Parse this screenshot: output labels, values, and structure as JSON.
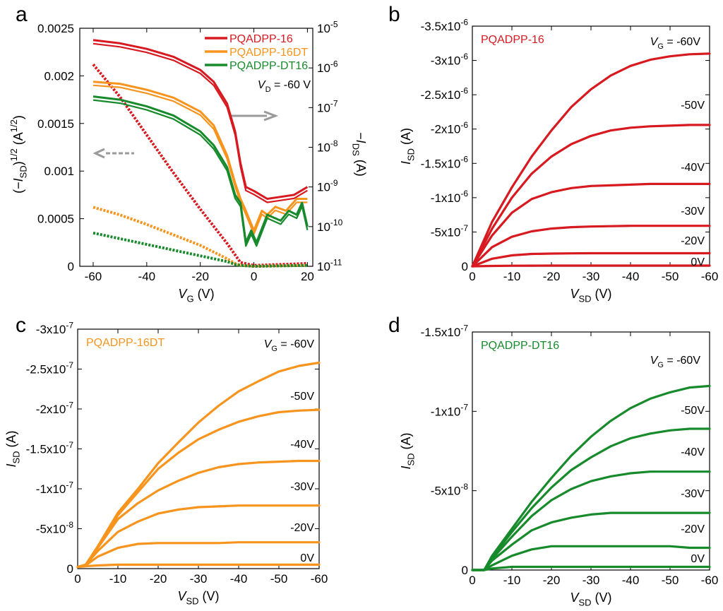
{
  "figure": {
    "colors": {
      "red": "#d71920",
      "orange": "#f7941d",
      "green": "#178a2b",
      "gray": "#9a9a9a"
    }
  },
  "chart_data": [
    {
      "panel": "a",
      "type": "line",
      "xlabel": {
        "italic": "V",
        "sub": "G",
        "unit": " (V)"
      },
      "ylabel_left": {
        "pre": "(−",
        "italic": "I",
        "sub": "SD",
        "post": ")",
        "sup": "1/2",
        "unit": " (A",
        "unitsup": "1/2",
        "close": ")"
      },
      "ylabel_right": {
        "pre": "−",
        "italic": "I",
        "sub": "DS",
        "unit": " (A)"
      },
      "xlim": [
        -65,
        22
      ],
      "ylim": [
        0,
        0.0025
      ],
      "xticks": [
        "-60",
        "-40",
        "-20",
        "0",
        "20"
      ],
      "yticks_left": [
        "0",
        "0.0005",
        "0.001",
        "0.0015",
        "0.002",
        "0.0025"
      ],
      "yticks_right": [
        {
          "base": "10",
          "exp": "-11"
        },
        {
          "base": "10",
          "exp": "-10"
        },
        {
          "base": "10",
          "exp": "-9"
        },
        {
          "base": "10",
          "exp": "-8"
        },
        {
          "base": "10",
          "exp": "-7"
        },
        {
          "base": "10",
          "exp": "-6"
        },
        {
          "base": "10",
          "exp": "-5"
        }
      ],
      "annotation": {
        "italic": "V",
        "sub": "D",
        "text": " = -60 V"
      },
      "legend": [
        "PQADPP-16",
        "PQADPP-16DT",
        "PQADPP-DT16"
      ],
      "series": [
        {
          "name": "PQADPP-16",
          "color": "red",
          "transfer_log_I": [
            [
              -60,
              -5.3
            ],
            [
              -50,
              -5.38
            ],
            [
              -40,
              -5.52
            ],
            [
              -30,
              -5.72
            ],
            [
              -20,
              -6.05
            ],
            [
              -15,
              -6.35
            ],
            [
              -10,
              -6.9
            ],
            [
              -7,
              -7.6
            ],
            [
              -5,
              -8.4
            ],
            [
              -3,
              -9.0
            ],
            [
              0,
              -9.1
            ],
            [
              5,
              -9.3
            ],
            [
              10,
              -9.25
            ],
            [
              15,
              -9.2
            ],
            [
              20,
              -9.0
            ]
          ],
          "sqrt_I": [
            [
              -60,
              0.00212
            ],
            [
              -50,
              0.00178
            ],
            [
              -40,
              0.00138
            ],
            [
              -30,
              0.00098
            ],
            [
              -20,
              0.0006
            ],
            [
              -15,
              0.00042
            ],
            [
              -10,
              0.00024
            ],
            [
              -7,
              0.00012
            ],
            [
              -5,
              4e-05
            ],
            [
              0,
              1e-05
            ],
            [
              20,
              3e-05
            ]
          ]
        },
        {
          "name": "PQADPP-16DT",
          "color": "orange",
          "transfer_log_I": [
            [
              -60,
              -6.35
            ],
            [
              -50,
              -6.4
            ],
            [
              -40,
              -6.55
            ],
            [
              -30,
              -6.75
            ],
            [
              -20,
              -7.1
            ],
            [
              -15,
              -7.45
            ],
            [
              -10,
              -8.2
            ],
            [
              -7,
              -8.9
            ],
            [
              -5,
              -9.3
            ],
            [
              -3,
              -9.6
            ],
            [
              0,
              -10.1
            ],
            [
              3,
              -9.6
            ],
            [
              5,
              -9.7
            ],
            [
              8,
              -9.5
            ],
            [
              12,
              -9.6
            ],
            [
              16,
              -9.3
            ],
            [
              20,
              -9.3
            ]
          ],
          "sqrt_I": [
            [
              -60,
              0.00062
            ],
            [
              -50,
              0.00054
            ],
            [
              -40,
              0.00044
            ],
            [
              -30,
              0.00033
            ],
            [
              -20,
              0.00022
            ],
            [
              -15,
              0.00015
            ],
            [
              -10,
              8e-05
            ],
            [
              -7,
              3e-05
            ],
            [
              -5,
              1e-05
            ],
            [
              0,
              0.0
            ],
            [
              20,
              1e-05
            ]
          ]
        },
        {
          "name": "PQADPP-DT16",
          "color": "green",
          "transfer_log_I": [
            [
              -60,
              -6.72
            ],
            [
              -50,
              -6.8
            ],
            [
              -40,
              -6.97
            ],
            [
              -30,
              -7.2
            ],
            [
              -20,
              -7.6
            ],
            [
              -15,
              -7.95
            ],
            [
              -10,
              -8.5
            ],
            [
              -7,
              -9.2
            ],
            [
              -5,
              -9.4
            ],
            [
              -4,
              -9.9
            ],
            [
              -3,
              -10.4
            ],
            [
              -1,
              -10.1
            ],
            [
              1,
              -10.4
            ],
            [
              5,
              -9.7
            ],
            [
              10,
              -9.85
            ],
            [
              13,
              -9.6
            ],
            [
              16,
              -9.7
            ],
            [
              18,
              -9.4
            ],
            [
              20,
              -10.0
            ]
          ],
          "sqrt_I": [
            [
              -60,
              0.00035
            ],
            [
              -50,
              0.00029
            ],
            [
              -40,
              0.00023
            ],
            [
              -30,
              0.00017
            ],
            [
              -20,
              0.00011
            ],
            [
              -15,
              8e-05
            ],
            [
              -10,
              5e-05
            ],
            [
              -7,
              2e-05
            ],
            [
              -5,
              1e-05
            ],
            [
              0,
              0.0
            ],
            [
              20,
              1e-05
            ]
          ]
        }
      ],
      "arrows": [
        {
          "direction": "right",
          "style": "solid"
        },
        {
          "direction": "left",
          "style": "dashed"
        }
      ]
    },
    {
      "panel": "b",
      "type": "line",
      "label": "PQADPP-16",
      "color": "red",
      "xlabel": {
        "italic": "V",
        "sub": "SD",
        "unit": " (V)"
      },
      "ylabel": {
        "italic": "I",
        "sub": "SD",
        "unit": " (A)"
      },
      "xlim": [
        0,
        -60
      ],
      "ylim": [
        0,
        -3.5e-06
      ],
      "xticks": [
        "0",
        "-10",
        "-20",
        "-30",
        "-40",
        "-50",
        "-60"
      ],
      "yticks": [
        {
          "base": "0",
          "exp": ""
        },
        {
          "base": "-5x10",
          "exp": "-7"
        },
        {
          "base": "-1x10",
          "exp": "-6"
        },
        {
          "base": "-1.5x10",
          "exp": "-6"
        },
        {
          "base": "-2x10",
          "exp": "-6"
        },
        {
          "base": "-2.5x10",
          "exp": "-6"
        },
        {
          "base": "-3x10",
          "exp": "-6"
        },
        {
          "base": "-3.5x10",
          "exp": "-6"
        }
      ],
      "vg_labels": [
        {
          "italic": "V",
          "sub": "G",
          "text": " = -60V"
        },
        {
          "text": "-50V"
        },
        {
          "text": "-40V"
        },
        {
          "text": "-30V"
        },
        {
          "text": "-20V"
        },
        {
          "text": "0V"
        }
      ],
      "x": [
        0,
        -5,
        -10,
        -15,
        -20,
        -25,
        -30,
        -35,
        -40,
        -45,
        -50,
        -55,
        -60
      ],
      "series": [
        {
          "name": "-60V",
          "values": [
            0,
            -6.5e-07,
            -1.15e-06,
            -1.6e-06,
            -1.98e-06,
            -2.32e-06,
            -2.58e-06,
            -2.78e-06,
            -2.92e-06,
            -3.01e-06,
            -3.06e-06,
            -3.09e-06,
            -3.1e-06
          ]
        },
        {
          "name": "-50V",
          "values": [
            0,
            -5.5e-07,
            -1e-06,
            -1.35e-06,
            -1.6e-06,
            -1.78e-06,
            -1.9e-06,
            -1.98e-06,
            -2.02e-06,
            -2.04e-06,
            -2.05e-06,
            -2.06e-06,
            -2.06e-06
          ]
        },
        {
          "name": "-40V",
          "values": [
            0,
            -4.5e-07,
            -7.8e-07,
            -9.8e-07,
            -1.08e-06,
            -1.14e-06,
            -1.17e-06,
            -1.18e-06,
            -1.19e-06,
            -1.2e-06,
            -1.2e-06,
            -1.2e-06,
            -1.2e-06
          ]
        },
        {
          "name": "-30V",
          "values": [
            0,
            -2.8e-07,
            -4.3e-07,
            -5.1e-07,
            -5.5e-07,
            -5.7e-07,
            -5.8e-07,
            -5.85e-07,
            -5.9e-07,
            -5.9e-07,
            -5.9e-07,
            -5.9e-07,
            -5.9e-07
          ]
        },
        {
          "name": "-20V",
          "values": [
            0,
            -1.1e-07,
            -1.6e-07,
            -1.8e-07,
            -1.85e-07,
            -1.88e-07,
            -1.9e-07,
            -1.9e-07,
            -1.9e-07,
            -1.9e-07,
            -1.9e-07,
            -1.9e-07,
            -1.9e-07
          ]
        },
        {
          "name": "0V",
          "values": [
            0,
            -5e-09,
            -8e-09,
            -9e-09,
            -1e-08,
            -1e-08,
            -1e-08,
            -1e-08,
            -1e-08,
            -1e-08,
            -1e-08,
            -1e-08,
            -1e-08
          ]
        }
      ]
    },
    {
      "panel": "c",
      "type": "line",
      "label": "PQADPP-16DT",
      "color": "orange",
      "xlabel": {
        "italic": "V",
        "sub": "SD",
        "unit": " (V)"
      },
      "ylabel": {
        "italic": "I",
        "sub": "SD",
        "unit": " (A)"
      },
      "xlim": [
        0,
        -60
      ],
      "ylim": [
        0,
        -3e-07
      ],
      "xticks": [
        "0",
        "-10",
        "-20",
        "-30",
        "-40",
        "-50",
        "-60"
      ],
      "yticks": [
        {
          "base": "0",
          "exp": ""
        },
        {
          "base": "-5x10",
          "exp": "-8"
        },
        {
          "base": "-1x10",
          "exp": "-7"
        },
        {
          "base": "-1.5x10",
          "exp": "-7"
        },
        {
          "base": "-2x10",
          "exp": "-7"
        },
        {
          "base": "-2.5x10",
          "exp": "-7"
        },
        {
          "base": "-3x10",
          "exp": "-7"
        }
      ],
      "vg_labels": [
        {
          "italic": "V",
          "sub": "G",
          "text": " = -60V"
        },
        {
          "text": "-50V"
        },
        {
          "text": "-40V"
        },
        {
          "text": "-30V"
        },
        {
          "text": "-20V"
        },
        {
          "text": "0V"
        }
      ],
      "x": [
        0,
        -2,
        -5,
        -10,
        -15,
        -20,
        -25,
        -30,
        -35,
        -40,
        -45,
        -50,
        -55,
        -60
      ],
      "series": [
        {
          "name": "-60V",
          "values": [
            -2e-09,
            -5e-09,
            -2.8e-08,
            -7e-08,
            -1e-07,
            -1.32e-07,
            -1.58e-07,
            -1.83e-07,
            -2.04e-07,
            -2.22e-07,
            -2.35e-07,
            -2.47e-07,
            -2.54e-07,
            -2.58e-07
          ]
        },
        {
          "name": "-50V",
          "values": [
            -2e-09,
            -5e-09,
            -2.7e-08,
            -6.7e-08,
            -9.6e-08,
            -1.25e-07,
            -1.45e-07,
            -1.62e-07,
            -1.74e-07,
            -1.84e-07,
            -1.91e-07,
            -1.96e-07,
            -1.98e-07,
            -1.99e-07
          ]
        },
        {
          "name": "-40V",
          "values": [
            -2e-09,
            -5e-09,
            -2.6e-08,
            -6.2e-08,
            -8.2e-08,
            -9.8e-08,
            -1.1e-07,
            -1.2e-07,
            -1.27e-07,
            -1.31e-07,
            -1.33e-07,
            -1.34e-07,
            -1.35e-07,
            -1.35e-07
          ]
        },
        {
          "name": "-30V",
          "values": [
            -2e-09,
            -5e-09,
            -2.2e-08,
            -4.6e-08,
            -5.9e-08,
            -6.9e-08,
            -7.4e-08,
            -7.7e-08,
            -7.8e-08,
            -7.9e-08,
            -7.9e-08,
            -7.9e-08,
            -7.9e-08,
            -7.9e-08
          ]
        },
        {
          "name": "-20V",
          "values": [
            -2e-09,
            -4e-09,
            -1.5e-08,
            -2.6e-08,
            -3.1e-08,
            -3.2e-08,
            -3.2e-08,
            -3.2e-08,
            -3.2e-08,
            -3.3e-08,
            -3.3e-08,
            -3.3e-08,
            -3.3e-08,
            -3.3e-08
          ]
        },
        {
          "name": "0V",
          "values": [
            -2e-09,
            -3e-09,
            -4e-09,
            -5e-09,
            -5e-09,
            -5e-09,
            -5e-09,
            -5e-09,
            -5e-09,
            -5e-09,
            -5e-09,
            -5e-09,
            -5e-09,
            -5e-09
          ]
        }
      ]
    },
    {
      "panel": "d",
      "type": "line",
      "label": "PQADPP-DT16",
      "color": "green",
      "xlabel": {
        "italic": "V",
        "sub": "SD",
        "unit": " (V)"
      },
      "ylabel": {
        "italic": "I",
        "sub": "SD",
        "unit": " (A)"
      },
      "xlim": [
        0,
        -60
      ],
      "ylim": [
        0,
        -1.5e-07
      ],
      "xticks": [
        "0",
        "-10",
        "-20",
        "-30",
        "-40",
        "-50",
        "-60"
      ],
      "yticks": [
        {
          "base": "0",
          "exp": ""
        },
        {
          "base": "-5x10",
          "exp": "-8"
        },
        {
          "base": "-1x10",
          "exp": "-7"
        },
        {
          "base": "-1.5x10",
          "exp": "-7"
        }
      ],
      "vg_labels": [
        {
          "italic": "V",
          "sub": "G",
          "text": " = -60V"
        },
        {
          "text": "-50V"
        },
        {
          "text": "-40V"
        },
        {
          "text": "-30V"
        },
        {
          "text": "-20V"
        },
        {
          "text": "0V"
        }
      ],
      "x": [
        0,
        -3,
        -5,
        -10,
        -15,
        -20,
        -25,
        -30,
        -35,
        -40,
        -45,
        -50,
        -55,
        -60
      ],
      "series": [
        {
          "name": "-60V",
          "values": [
            0,
            0,
            -9e-09,
            -2.6e-08,
            -4.3e-08,
            -5.8e-08,
            -7.2e-08,
            -8.4e-08,
            -9.4e-08,
            -1.02e-07,
            -1.08e-07,
            -1.12e-07,
            -1.15e-07,
            -1.16e-07
          ]
        },
        {
          "name": "-50V",
          "values": [
            0,
            0,
            -8e-09,
            -2.4e-08,
            -3.9e-08,
            -5.2e-08,
            -6.3e-08,
            -7.1e-08,
            -7.8e-08,
            -8.3e-08,
            -8.6e-08,
            -8.8e-08,
            -8.9e-08,
            -8.9e-08
          ]
        },
        {
          "name": "-40V",
          "values": [
            0,
            0,
            -7e-09,
            -2.1e-08,
            -3.4e-08,
            -4.4e-08,
            -5.1e-08,
            -5.6e-08,
            -5.9e-08,
            -6.1e-08,
            -6.2e-08,
            -6.2e-08,
            -6.2e-08,
            -6.2e-08
          ]
        },
        {
          "name": "-30V",
          "values": [
            0,
            0,
            -6e-09,
            -1.6e-08,
            -2.5e-08,
            -3e-08,
            -3.3e-08,
            -3.5e-08,
            -3.6e-08,
            -3.6e-08,
            -3.6e-08,
            -3.6e-08,
            -3.6e-08,
            -3.6e-08
          ]
        },
        {
          "name": "-20V",
          "values": [
            0,
            0,
            -3e-09,
            -9e-09,
            -1.3e-08,
            -1.5e-08,
            -1.5e-08,
            -1.5e-08,
            -1.5e-08,
            -1.5e-08,
            -1.5e-08,
            -1.5e-08,
            -1.4e-08,
            -1.4e-08
          ]
        },
        {
          "name": "0V",
          "values": [
            0,
            0,
            -1e-09,
            -2e-09,
            -2e-09,
            -2e-09,
            -2e-09,
            -2e-09,
            -2e-09,
            -2e-09,
            -2e-09,
            -2e-09,
            -2e-09,
            -2e-09
          ]
        }
      ]
    }
  ]
}
